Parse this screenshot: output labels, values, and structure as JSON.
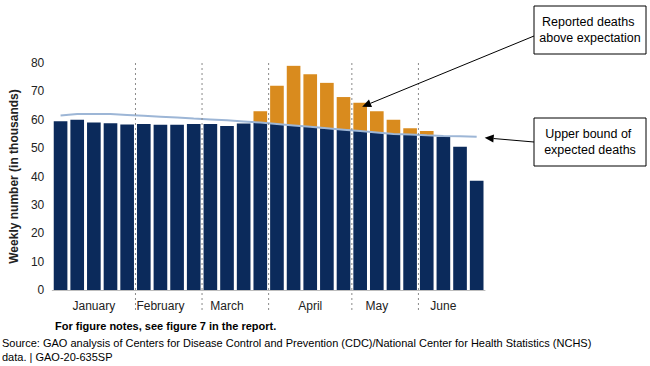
{
  "chart_data": {
    "type": "bar",
    "stacked": true,
    "grid": false,
    "y_label": "Weekly number (in thousands)",
    "categories": [
      null,
      null,
      "January",
      null,
      null,
      null,
      "February",
      null,
      null,
      null,
      "March",
      null,
      null,
      null,
      null,
      "April",
      null,
      null,
      null,
      "May",
      null,
      null,
      null,
      "June",
      null,
      null
    ],
    "series": [
      {
        "type": "bar",
        "color": "#0b2a5b",
        "values": [
          59.5,
          60,
          59,
          58.8,
          58.3,
          58.5,
          58.2,
          58.2,
          58.5,
          58.5,
          57.8,
          58.7,
          59,
          58.5,
          58,
          57.5,
          57,
          56.5,
          56,
          55.5,
          55,
          54.8,
          54.5,
          54,
          50.5,
          38.5
        ]
      },
      {
        "type": "bar",
        "color": "#d98b1e",
        "values": [
          null,
          null,
          null,
          null,
          null,
          null,
          null,
          null,
          null,
          null,
          null,
          null,
          4,
          13.5,
          21,
          18.5,
          16,
          11.5,
          10,
          7.5,
          5,
          2.2,
          1.5,
          null,
          null,
          null
        ]
      },
      {
        "type": "line",
        "color": "#9db6d6",
        "values": [
          61.5,
          62,
          62,
          62,
          61.7,
          61.4,
          61.1,
          60.8,
          60.4,
          60.1,
          59.8,
          59.4,
          59,
          58.5,
          58,
          57.5,
          57,
          56.5,
          56,
          55.5,
          55,
          54.8,
          54.5,
          54.3,
          54.2,
          54
        ]
      }
    ],
    "ylim": [
      0,
      80
    ],
    "yticks": [
      0,
      10,
      20,
      30,
      40,
      50,
      60,
      70,
      80
    ],
    "annotations": [
      "Reported deaths above expectation",
      "Upper bound of expected deaths"
    ],
    "note": "For figure notes, see figure 7 in the report.",
    "source": [
      "Source: GAO analysis of Centers for Disease Control and Prevention (CDC)/National Center for Health Statistics (NCHS)",
      "data. | GAO-20-635SP"
    ]
  }
}
